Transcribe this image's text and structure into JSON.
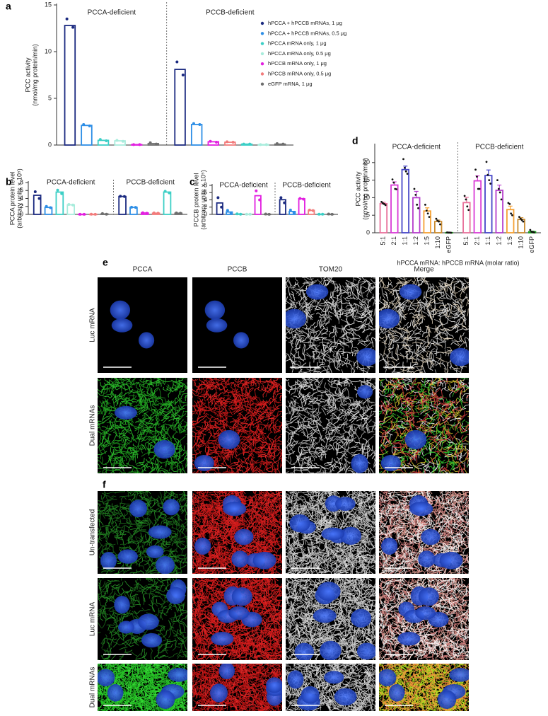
{
  "chart_data": [
    {
      "type": "bar",
      "panel": "a",
      "ylabel": [
        "PCC activity",
        "(nmol/mg protein/min)"
      ],
      "ylim": [
        0,
        15
      ],
      "yticks": [
        0,
        5,
        10,
        15
      ],
      "groups": [
        {
          "label": "PCCA-deficient",
          "bars": [
            {
              "color": "#1b2a80",
              "value": 12.8,
              "points": [
                13.5,
                12.6
              ]
            },
            {
              "color": "#2d8ee6",
              "value": 2.1,
              "points": [
                2.2,
                2.05
              ]
            },
            {
              "color": "#3ccfc6",
              "value": 0.5,
              "points": [
                0.6,
                0.45
              ]
            },
            {
              "color": "#a8ecdc",
              "value": 0.45,
              "points": [
                0.5,
                0.4
              ]
            },
            {
              "color": "#e21fe0",
              "value": 0.05,
              "points": [
                0.05,
                0.05
              ]
            },
            {
              "color": "#6e6e6e",
              "value": 0.15,
              "points": [
                0.25,
                0.1
              ]
            }
          ]
        },
        {
          "label": "PCCB-deficient",
          "bars": [
            {
              "color": "#1b2a80",
              "value": 8.1,
              "points": [
                8.9,
                7.5
              ]
            },
            {
              "color": "#2d8ee6",
              "value": 2.2,
              "points": [
                2.3,
                2.2
              ]
            },
            {
              "color": "#e21fe0",
              "value": 0.35,
              "points": [
                0.4,
                0.3
              ]
            },
            {
              "color": "#f27c7c",
              "value": 0.3,
              "points": [
                0.35,
                0.3
              ]
            },
            {
              "color": "#3ccfc6",
              "value": 0.1,
              "points": [
                0.1,
                0.1
              ]
            },
            {
              "color": "#a8ecdc",
              "value": 0.05,
              "points": [
                0.05,
                0.05
              ]
            },
            {
              "color": "#6e6e6e",
              "value": 0.1,
              "points": [
                0.15,
                0.1
              ]
            }
          ]
        }
      ],
      "legend": [
        {
          "name": "hPCCA + hPCCB mRNAs, 1 μg",
          "color": "#1b2a80"
        },
        {
          "name": "hPCCA + hPCCB mRNAs, 0.5 μg",
          "color": "#2d8ee6"
        },
        {
          "name": "hPCCA mRNA only, 1 μg",
          "color": "#3ccfc6"
        },
        {
          "name": "hPCCA mRNA only, 0.5 μg",
          "color": "#a8ecdc"
        },
        {
          "name": "hPCCB mRNA only, 1 μg",
          "color": "#e21fe0"
        },
        {
          "name": "hPCCB mRNA only, 0.5 μg",
          "color": "#f27c7c"
        },
        {
          "name": "eGFP mRNA, 1 μg",
          "color": "#6e6e6e"
        }
      ]
    },
    {
      "type": "bar",
      "panel": "b",
      "ylabel": [
        "PCCA protein level",
        "(arbitrary units × 10⁵)"
      ],
      "ylim": [
        0,
        8
      ],
      "yticks": [
        0,
        2,
        4,
        6,
        8
      ],
      "groups": [
        {
          "label": "PCCA-deficient",
          "bars": [
            {
              "color": "#1b2a80",
              "value": 4.8,
              "points": [
                5.7,
                4.0
              ]
            },
            {
              "color": "#2d8ee6",
              "value": 1.75,
              "points": [
                2.0,
                1.7
              ]
            },
            {
              "color": "#3ccfc6",
              "value": 5.6,
              "points": [
                6.1,
                5.2
              ]
            },
            {
              "color": "#a8ecdc",
              "value": 2.4,
              "points": [
                2.5,
                2.35
              ]
            },
            {
              "color": "#e21fe0",
              "value": 0.03,
              "points": [
                0.03,
                0.03
              ]
            },
            {
              "color": "#f27c7c",
              "value": 0.03,
              "points": [
                0.05,
                0.02
              ]
            },
            {
              "color": "#6e6e6e",
              "value": 0.1,
              "points": [
                0.2,
                0.05
              ]
            }
          ]
        },
        {
          "label": "PCCB-deficient",
          "bars": [
            {
              "color": "#1b2a80",
              "value": 4.5,
              "points": [
                4.55,
                4.5
              ]
            },
            {
              "color": "#2d8ee6",
              "value": 1.75,
              "points": [
                1.8,
                1.75
              ]
            },
            {
              "color": "#e21fe0",
              "value": 0.35,
              "points": [
                0.4,
                0.3
              ]
            },
            {
              "color": "#f27c7c",
              "value": 0.3,
              "points": [
                0.35,
                0.3
              ]
            },
            {
              "color": "#3ccfc6",
              "value": 5.6,
              "points": [
                5.8,
                5.4
              ]
            },
            {
              "color": "#6e6e6e",
              "value": 0.3,
              "points": [
                0.35,
                0.3
              ]
            }
          ]
        }
      ]
    },
    {
      "type": "bar",
      "panel": "c",
      "ylabel": [
        "PCCB protein level",
        "(arbitrary units × 10⁵)"
      ],
      "ylim": [
        0,
        8
      ],
      "yticks": [
        0,
        2,
        4,
        6,
        8
      ],
      "groups": [
        {
          "label": "PCCA-deficient",
          "bars": [
            {
              "color": "#1b2a80",
              "value": 3.15,
              "points": [
                4.6,
                2.0
              ]
            },
            {
              "color": "#2d8ee6",
              "value": 0.65,
              "points": [
                1.1,
                0.4
              ]
            },
            {
              "color": "#3ccfc6",
              "value": 0.1,
              "points": [
                0.15,
                0.05
              ]
            },
            {
              "color": "#a8ecdc",
              "value": 0.05,
              "points": [
                0.05,
                0.05
              ]
            },
            {
              "color": "#e21fe0",
              "value": 5.15,
              "points": [
                6.5,
                4.0
              ]
            },
            {
              "color": "#6e6e6e",
              "value": 0.05,
              "points": [
                0.1,
                0.02
              ]
            }
          ]
        },
        {
          "label": "PCCB-deficient",
          "bars": [
            {
              "color": "#1b2a80",
              "value": 4.05,
              "points": [
                4.6,
                3.2
              ]
            },
            {
              "color": "#2d8ee6",
              "value": 0.8,
              "points": [
                1.2,
                0.5
              ]
            },
            {
              "color": "#e21fe0",
              "value": 4.3,
              "points": [
                4.4,
                4.2
              ]
            },
            {
              "color": "#f27c7c",
              "value": 1.1,
              "points": [
                1.2,
                1.05
              ]
            },
            {
              "color": "#3ccfc6",
              "value": 0.05,
              "points": [
                0.05,
                0.05
              ]
            },
            {
              "color": "#6e6e6e",
              "value": 0.05,
              "points": [
                0.1,
                0.02
              ]
            }
          ]
        }
      ]
    },
    {
      "type": "bar",
      "panel": "d",
      "ylabel": [
        "PCC activity",
        "(nmol/mg protein/min)"
      ],
      "xlabel": "hPCCA mRNA: hPCCB mRNA (molar ratio)",
      "ylim": [
        0,
        25
      ],
      "yticks": [
        0,
        5,
        10,
        15,
        20
      ],
      "groups": [
        {
          "label": "PCCA-deficient",
          "bars": [
            {
              "label": "5:1",
              "color": "#e8709a",
              "value": 8.3,
              "error": 0.4,
              "points": [
                8.8,
                8.4,
                8.2,
                7.9
              ]
            },
            {
              "label": "2:1",
              "color": "#d93bd6",
              "value": 13.6,
              "error": 0.9,
              "points": [
                15.2,
                14.3,
                12.5,
                12.4
              ]
            },
            {
              "label": "1:1",
              "color": "#4646c8",
              "value": 18.0,
              "error": 1.0,
              "points": [
                21.0,
                18.5,
                17.5,
                16.8
              ]
            },
            {
              "label": "1:2",
              "color": "#b53ccc",
              "value": 10.0,
              "error": 1.8,
              "points": [
                12.5,
                10.8,
                8.0,
                7.0
              ]
            },
            {
              "label": "1:5",
              "color": "#f5a032",
              "value": 6.2,
              "error": 0.9,
              "points": [
                8.0,
                6.3,
                5.5,
                4.5
              ]
            },
            {
              "label": "1:10",
              "color": "#c98a2e",
              "value": 3.2,
              "error": 0.4,
              "points": [
                4.0,
                3.5,
                3.2,
                2.4
              ]
            },
            {
              "label": "eGFP",
              "color": "#1fa01f",
              "value": 0.05,
              "error": 0.05,
              "points": [
                0.1,
                0.05,
                0.05,
                0.0
              ]
            }
          ]
        },
        {
          "label": "PCCB-deficient",
          "bars": [
            {
              "label": "5:1",
              "color": "#e8709a",
              "value": 8.6,
              "error": 1.5,
              "points": [
                10.5,
                9.5,
                7.5,
                6.5
              ]
            },
            {
              "label": "2:1",
              "color": "#d93bd6",
              "value": 14.8,
              "error": 1.4,
              "points": [
                18.0,
                16.0,
                12.5,
                12.5
              ]
            },
            {
              "label": "1:1",
              "color": "#4646c8",
              "value": 16.3,
              "error": 1.6,
              "points": [
                20.2,
                16.5,
                15.0,
                14.0
              ]
            },
            {
              "label": "1:2",
              "color": "#b53ccc",
              "value": 12.1,
              "error": 1.5,
              "points": [
                15.0,
                12.5,
                11.5,
                9.5
              ]
            },
            {
              "label": "1:5",
              "color": "#f5a032",
              "value": 6.6,
              "error": 1.0,
              "points": [
                8.5,
                8.2,
                5.5,
                5.0
              ]
            },
            {
              "label": "1:10",
              "color": "#c98a2e",
              "value": 3.8,
              "error": 0.5,
              "points": [
                4.5,
                4.0,
                3.6,
                3.2
              ]
            },
            {
              "label": "eGFP",
              "color": "#1fa01f",
              "value": 0.3,
              "error": 0.15,
              "points": [
                0.8,
                0.3,
                0.2,
                0.1
              ]
            }
          ]
        }
      ]
    }
  ],
  "figure_panels": [
    {
      "panel": "e",
      "columns": [
        "PCCA",
        "PCCB",
        "TOM20",
        "Merge"
      ],
      "rows": [
        "Luc mRNA",
        "Dual mRNAs"
      ]
    },
    {
      "panel": "f",
      "rows": [
        "Un-transfected",
        "Luc mRNA",
        "Dual mRNAs"
      ]
    }
  ]
}
